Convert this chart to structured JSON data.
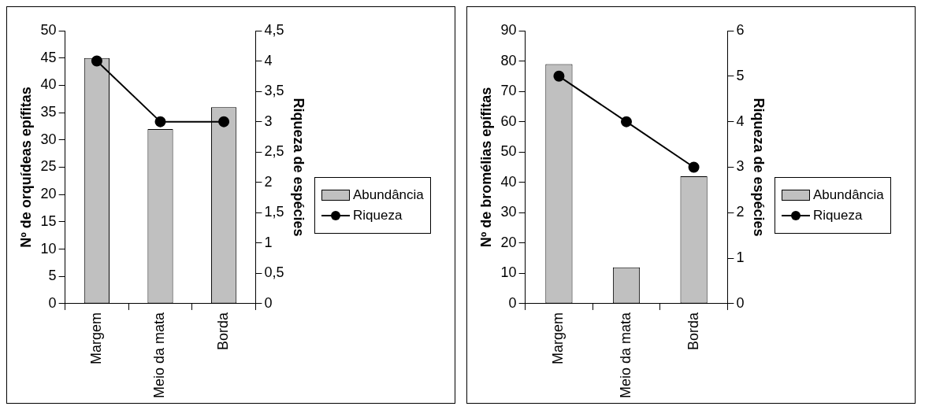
{
  "chart_data": [
    {
      "type": "bar",
      "categories": [
        "Margem",
        "Meio da mata",
        "Borda"
      ],
      "ylabel": "Nº de orquídeas epífitas",
      "y2label": "Riqueza de espécies",
      "ylim": [
        0,
        50
      ],
      "yticks": [
        0,
        5,
        10,
        15,
        20,
        25,
        30,
        35,
        40,
        45,
        50
      ],
      "y2lim": [
        0,
        4.5
      ],
      "y2ticks": [
        0,
        {
          "value": 0.5,
          "label": "0,5"
        },
        1,
        {
          "value": 1.5,
          "label": "1,5"
        },
        2,
        {
          "value": 2.5,
          "label": "2,5"
        },
        3,
        {
          "value": 3.5,
          "label": "3,5"
        },
        4,
        {
          "value": 4.5,
          "label": "4,5"
        }
      ],
      "legend": "right",
      "marker": "circle",
      "series": [
        {
          "name": "Abundância",
          "color": "#c0c0c0",
          "values": [
            45,
            32,
            36
          ]
        },
        {
          "name": "Riqueza",
          "type": "line",
          "axis": "y2",
          "color": "#000000",
          "values": [
            4,
            3,
            3
          ]
        }
      ]
    },
    {
      "type": "bar",
      "categories": [
        "Margem",
        "Meio da mata",
        "Borda"
      ],
      "ylabel": "Nº de bromélias epífitas",
      "y2label": "Riqueza de espécies",
      "ylim": [
        0,
        90
      ],
      "yticks": [
        0,
        10,
        20,
        30,
        40,
        50,
        60,
        70,
        80,
        90
      ],
      "y2lim": [
        0,
        6
      ],
      "y2ticks": [
        0,
        1,
        2,
        3,
        4,
        5,
        6
      ],
      "legend": "right",
      "marker": "circle",
      "series": [
        {
          "name": "Abundância",
          "color": "#c0c0c0",
          "values": [
            79,
            12,
            42
          ]
        },
        {
          "name": "Riqueza",
          "type": "line",
          "axis": "y2",
          "color": "#000000",
          "values": [
            5,
            4,
            3
          ]
        }
      ]
    }
  ]
}
